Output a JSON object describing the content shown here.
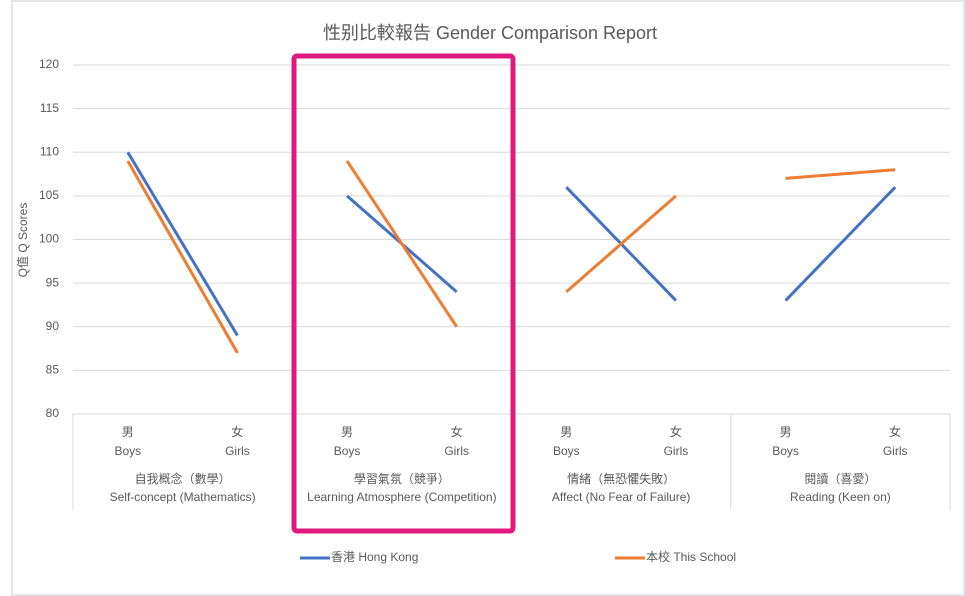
{
  "chart_data": {
    "type": "line",
    "title": "性别比較報告 Gender Comparison Report",
    "y_label": "Q值 Q Scores",
    "categories": [
      {
        "zh": "男",
        "en": "Boys"
      },
      {
        "zh": "女",
        "en": "Girls"
      },
      {
        "zh": "男",
        "en": "Boys"
      },
      {
        "zh": "女",
        "en": "Girls"
      },
      {
        "zh": "男",
        "en": "Boys"
      },
      {
        "zh": "女",
        "en": "Girls"
      },
      {
        "zh": "男",
        "en": "Boys"
      },
      {
        "zh": "女",
        "en": "Girls"
      }
    ],
    "groups": [
      {
        "zh": "自我概念（數學）",
        "en": "Self-concept (Mathematics)"
      },
      {
        "zh": "學習氣氛（競爭）",
        "en": "Learning Atmosphere (Competition)"
      },
      {
        "zh": "情緒（無恐懼失敗）",
        "en": "Affect (No Fear of Failure)"
      },
      {
        "zh": "閱讀（喜愛）",
        "en": "Reading (Keen on)"
      }
    ],
    "series": [
      {
        "name": "香港 Hong Kong",
        "color": "#4472c4",
        "values": [
          110,
          89,
          105,
          94,
          106,
          93,
          93,
          106
        ]
      },
      {
        "name": "本校 This School",
        "color": "#ed7d31",
        "values": [
          109,
          87,
          109,
          90,
          94,
          105,
          107,
          108
        ]
      }
    ],
    "ylim": [
      80,
      120
    ],
    "yticks": [
      80,
      85,
      90,
      95,
      100,
      105,
      110,
      115,
      120
    ],
    "grid": true,
    "legend": "bottom"
  }
}
